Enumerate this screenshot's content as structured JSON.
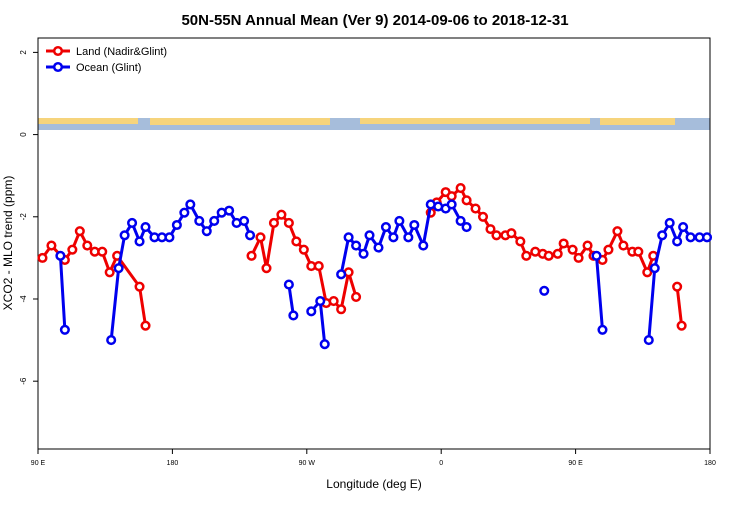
{
  "chart_data": {
    "type": "line",
    "title": "50N-55N Annual Mean (Ver 9)   2014-09-06 to 2018-12-31",
    "x_label": "Longitude (deg E)",
    "y_label": "XCO2 - MLO trend (ppm)",
    "xlim": [
      90,
      540
    ],
    "xticks": [
      {
        "value": 90,
        "label": "90 E"
      },
      180,
      {
        "value": 270,
        "label": "90 W"
      },
      {
        "value": 360,
        "label": "0"
      },
      {
        "value": 450,
        "label": "90 E"
      },
      {
        "value": 540,
        "label": "180"
      }
    ],
    "ylim": [
      -7.65,
      2.35
    ],
    "yticks": [
      -6,
      -4,
      -2,
      0,
      2
    ],
    "legend": "upper left",
    "series": [
      {
        "name": "Land (Nadir&Glint)",
        "color": "#ee0000",
        "x": [
          93,
          99,
          108,
          113,
          118,
          123,
          128,
          133,
          138,
          143,
          158,
          162,
          null,
          233,
          239,
          243,
          248,
          253,
          258,
          263,
          268,
          273,
          278,
          283,
          288,
          293,
          298,
          303,
          null,
          353,
          357,
          363,
          367,
          373,
          377,
          383,
          388,
          393,
          397,
          403,
          407,
          413,
          417,
          423,
          428,
          432,
          438,
          442,
          448,
          452,
          458,
          462,
          468,
          472,
          478,
          482,
          488,
          492,
          498,
          502,
          null,
          518,
          521
        ],
        "values": [
          -3.0,
          -2.7,
          -3.05,
          -2.8,
          -2.35,
          -2.7,
          -2.85,
          -2.85,
          -3.35,
          -2.95,
          -3.7,
          -4.65,
          null,
          -2.95,
          -2.5,
          -3.25,
          -2.15,
          -1.95,
          -2.15,
          -2.6,
          -2.8,
          -3.2,
          -3.2,
          -4.1,
          -4.05,
          -4.25,
          -3.35,
          -3.95,
          null,
          -1.9,
          -1.65,
          -1.4,
          -1.5,
          -1.3,
          -1.6,
          -1.8,
          -2.0,
          -2.3,
          -2.45,
          -2.45,
          -2.4,
          -2.6,
          -2.95,
          -2.85,
          -2.9,
          -2.95,
          -2.9,
          -2.65,
          -2.8,
          -3.0,
          -2.7,
          -2.95,
          -3.05,
          -2.8,
          -2.35,
          -2.7,
          -2.85,
          -2.85,
          -3.35,
          -2.95,
          null,
          -3.7,
          -4.65
        ]
      },
      {
        "name": "Ocean (Glint)",
        "color": "#0000ee",
        "x": [
          105,
          108,
          null,
          139,
          144,
          148,
          153,
          158,
          162,
          168,
          173,
          178,
          183,
          188,
          192,
          198,
          203,
          208,
          213,
          218,
          223,
          228,
          232,
          null,
          258,
          261,
          null,
          273,
          279,
          282,
          null,
          293,
          298,
          303,
          308,
          312,
          318,
          323,
          328,
          332,
          338,
          342,
          348,
          353,
          358,
          363,
          367,
          373,
          377,
          null,
          429,
          null,
          464,
          468,
          null,
          499,
          503,
          508,
          513,
          518,
          522,
          527,
          533,
          538
        ],
        "values": [
          -2.95,
          -4.75,
          null,
          -5.0,
          -3.25,
          -2.45,
          -2.15,
          -2.6,
          -2.25,
          -2.5,
          -2.5,
          -2.5,
          -2.2,
          -1.9,
          -1.7,
          -2.1,
          -2.35,
          -2.1,
          -1.9,
          -1.85,
          -2.15,
          -2.1,
          -2.45,
          null,
          -3.65,
          -4.4,
          null,
          -4.3,
          -4.05,
          -5.1,
          null,
          -3.4,
          -2.5,
          -2.7,
          -2.9,
          -2.45,
          -2.75,
          -2.25,
          -2.5,
          -2.1,
          -2.5,
          -2.2,
          -2.7,
          -1.7,
          -1.75,
          -1.8,
          -1.7,
          -2.1,
          -2.25,
          null,
          -3.8,
          null,
          -2.95,
          -4.75,
          null,
          -5.0,
          -3.25,
          -2.45,
          -2.15,
          -2.6,
          -2.25,
          -2.5,
          -2.5,
          -2.5
        ]
      }
    ]
  }
}
